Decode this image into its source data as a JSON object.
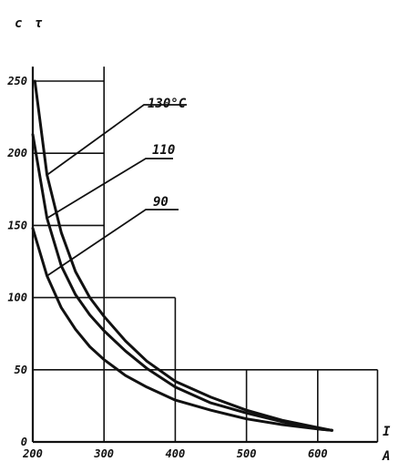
{
  "chart_data": {
    "type": "line",
    "title": "",
    "xlabel": "I",
    "xunit": "A",
    "ylabel": "τ",
    "yunit": "c",
    "xlim": [
      200,
      620
    ],
    "ylim": [
      0,
      260
    ],
    "x_ticks": [
      "200",
      "300",
      "400",
      "500",
      "600"
    ],
    "y_ticks": [
      "0",
      "50",
      "100",
      "150",
      "200",
      "250"
    ],
    "grid": true,
    "series": [
      {
        "name": "130°C",
        "x": [
          203,
          220,
          240,
          260,
          280,
          300,
          330,
          360,
          400,
          450,
          500,
          550,
          600,
          620
        ],
        "y": [
          250,
          185,
          145,
          118,
          100,
          87,
          70,
          56,
          42,
          31,
          22,
          15,
          10,
          8
        ]
      },
      {
        "name": "110",
        "x": [
          200,
          220,
          240,
          260,
          280,
          300,
          330,
          360,
          400,
          450,
          500,
          550,
          600,
          620
        ],
        "y": [
          213,
          155,
          122,
          102,
          88,
          77,
          63,
          51,
          38,
          27,
          20,
          14,
          9,
          8
        ]
      },
      {
        "name": "90",
        "x": [
          200,
          220,
          240,
          260,
          280,
          300,
          330,
          360,
          400,
          450,
          500,
          550,
          600,
          620
        ],
        "y": [
          148,
          115,
          93,
          78,
          66,
          57,
          46,
          38,
          29,
          22,
          16,
          12,
          9,
          8
        ]
      }
    ]
  }
}
